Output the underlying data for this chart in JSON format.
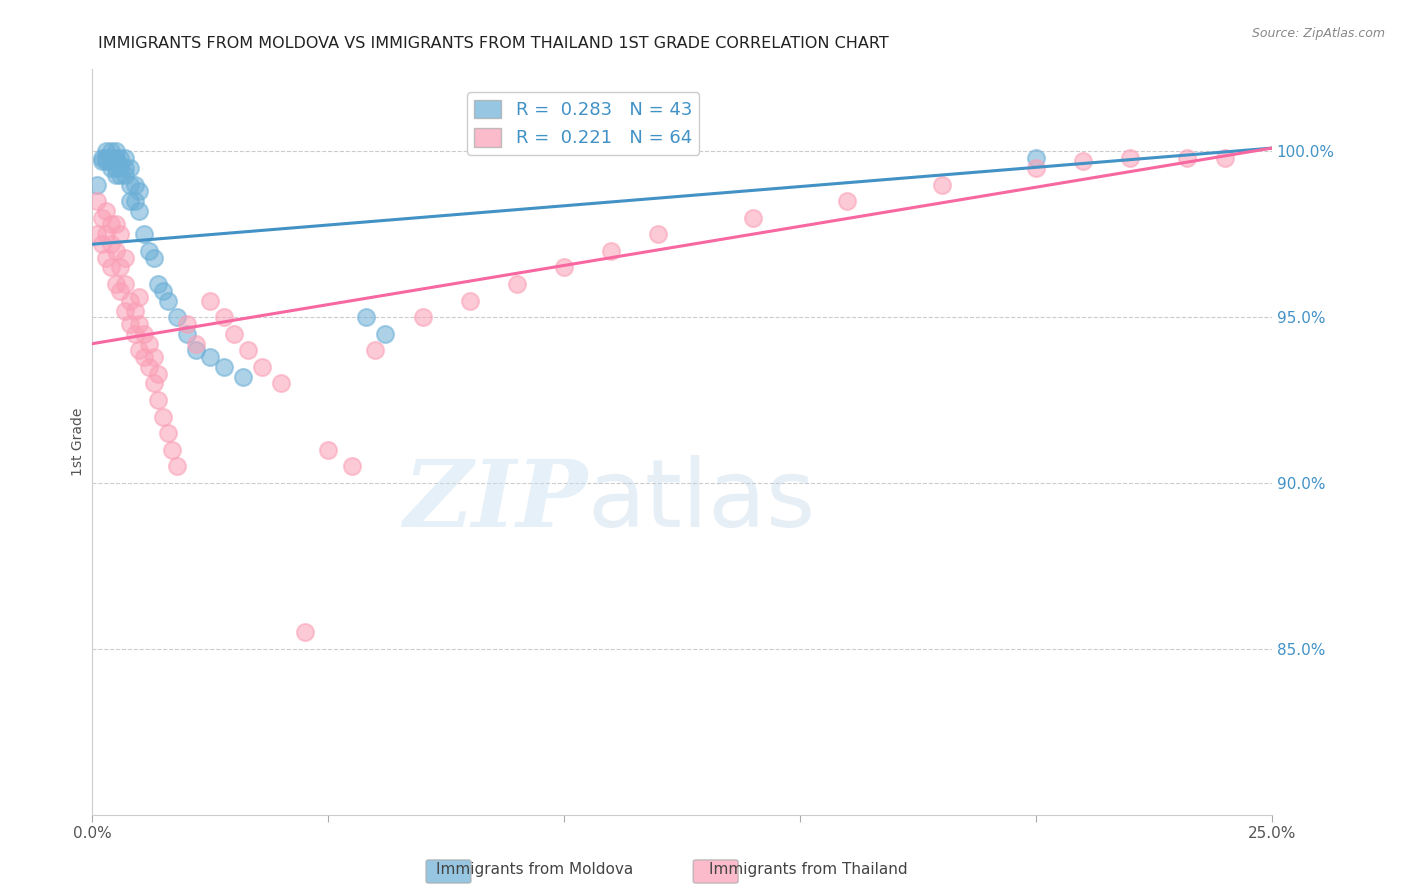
{
  "title": "IMMIGRANTS FROM MOLDOVA VS IMMIGRANTS FROM THAILAND 1ST GRADE CORRELATION CHART",
  "source": "Source: ZipAtlas.com",
  "ylabel": "1st Grade",
  "ytick_labels": [
    "100.0%",
    "95.0%",
    "90.0%",
    "85.0%"
  ],
  "ytick_values": [
    1.0,
    0.95,
    0.9,
    0.85
  ],
  "xlim": [
    0.0,
    0.25
  ],
  "ylim": [
    0.8,
    1.025
  ],
  "R_moldova": 0.283,
  "N_moldova": 43,
  "R_thailand": 0.221,
  "N_thailand": 64,
  "color_moldova": "#6baed6",
  "color_thailand": "#fa9fb5",
  "line_color_moldova": "#4292c6",
  "line_color_thailand": "#f768a1",
  "watermark_zip": "ZIP",
  "watermark_atlas": "atlas",
  "moldova_x": [
    0.001,
    0.002,
    0.002,
    0.003,
    0.003,
    0.003,
    0.004,
    0.004,
    0.004,
    0.004,
    0.005,
    0.005,
    0.005,
    0.005,
    0.005,
    0.006,
    0.006,
    0.006,
    0.007,
    0.007,
    0.007,
    0.008,
    0.008,
    0.008,
    0.009,
    0.009,
    0.01,
    0.01,
    0.011,
    0.012,
    0.013,
    0.014,
    0.015,
    0.016,
    0.018,
    0.02,
    0.022,
    0.025,
    0.028,
    0.032,
    0.058,
    0.062,
    0.2
  ],
  "moldova_y": [
    0.99,
    0.997,
    0.998,
    0.997,
    0.998,
    1.0,
    0.995,
    0.997,
    0.998,
    1.0,
    0.993,
    0.995,
    0.997,
    0.998,
    1.0,
    0.993,
    0.996,
    0.998,
    0.993,
    0.995,
    0.998,
    0.985,
    0.99,
    0.995,
    0.985,
    0.99,
    0.982,
    0.988,
    0.975,
    0.97,
    0.968,
    0.96,
    0.958,
    0.955,
    0.95,
    0.945,
    0.94,
    0.938,
    0.935,
    0.932,
    0.95,
    0.945,
    0.998
  ],
  "thailand_x": [
    0.001,
    0.001,
    0.002,
    0.002,
    0.003,
    0.003,
    0.003,
    0.004,
    0.004,
    0.004,
    0.005,
    0.005,
    0.005,
    0.006,
    0.006,
    0.006,
    0.007,
    0.007,
    0.007,
    0.008,
    0.008,
    0.009,
    0.009,
    0.01,
    0.01,
    0.01,
    0.011,
    0.011,
    0.012,
    0.012,
    0.013,
    0.013,
    0.014,
    0.014,
    0.015,
    0.016,
    0.017,
    0.018,
    0.02,
    0.022,
    0.025,
    0.028,
    0.03,
    0.033,
    0.036,
    0.04,
    0.045,
    0.05,
    0.055,
    0.06,
    0.07,
    0.08,
    0.09,
    0.1,
    0.11,
    0.12,
    0.14,
    0.16,
    0.18,
    0.2,
    0.21,
    0.22,
    0.232,
    0.24
  ],
  "thailand_y": [
    0.975,
    0.985,
    0.972,
    0.98,
    0.968,
    0.975,
    0.982,
    0.965,
    0.972,
    0.978,
    0.96,
    0.97,
    0.978,
    0.958,
    0.965,
    0.975,
    0.952,
    0.96,
    0.968,
    0.948,
    0.955,
    0.945,
    0.952,
    0.94,
    0.948,
    0.956,
    0.938,
    0.945,
    0.935,
    0.942,
    0.93,
    0.938,
    0.925,
    0.933,
    0.92,
    0.915,
    0.91,
    0.905,
    0.948,
    0.942,
    0.955,
    0.95,
    0.945,
    0.94,
    0.935,
    0.93,
    0.855,
    0.91,
    0.905,
    0.94,
    0.95,
    0.955,
    0.96,
    0.965,
    0.97,
    0.975,
    0.98,
    0.985,
    0.99,
    0.995,
    0.997,
    0.998,
    0.998,
    0.998
  ],
  "line_moldova": {
    "x0": 0.0,
    "x1": 0.25,
    "y0": 0.972,
    "y1": 1.001
  },
  "line_thailand": {
    "x0": 0.0,
    "x1": 0.25,
    "y0": 0.942,
    "y1": 1.001
  }
}
